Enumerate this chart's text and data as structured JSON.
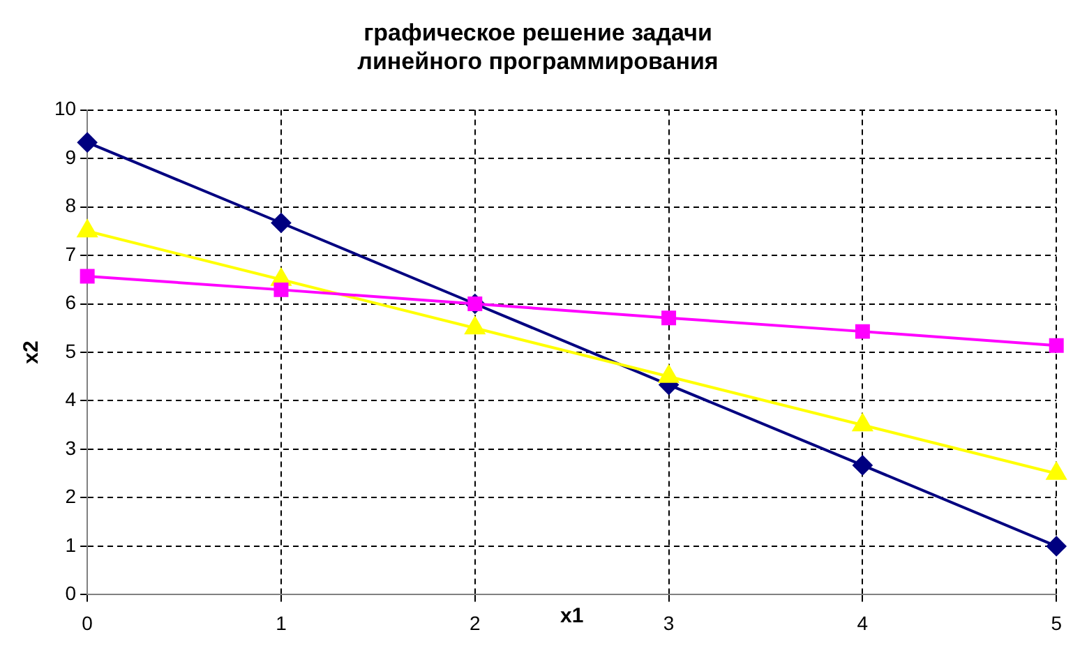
{
  "chart_data": {
    "type": "line",
    "title": "графическое решение задачи линейного программирования",
    "xlabel": "x1",
    "ylabel": "x2",
    "x": [
      0,
      1,
      2,
      3,
      4,
      5
    ],
    "series": [
      {
        "color": "#000080",
        "marker": "diamond",
        "values": [
          9.33,
          7.67,
          6,
          4.33,
          2.67,
          1
        ]
      },
      {
        "color": "#ffff00",
        "marker": "triangle",
        "values": [
          7.5,
          6.5,
          5.5,
          4.5,
          3.5,
          2.5
        ]
      },
      {
        "color": "#ff00ff",
        "marker": "square",
        "values": [
          6.57,
          6.29,
          6,
          5.71,
          5.43,
          5.14
        ]
      }
    ],
    "xlim": [
      0,
      5
    ],
    "xticks": [
      0,
      1,
      2,
      3,
      4,
      5
    ],
    "ylim": [
      0,
      10
    ],
    "yticks": [
      0,
      1,
      2,
      3,
      4,
      5,
      6,
      7,
      8,
      9,
      10
    ],
    "grid": true,
    "legend": false,
    "line_style": "solid"
  }
}
